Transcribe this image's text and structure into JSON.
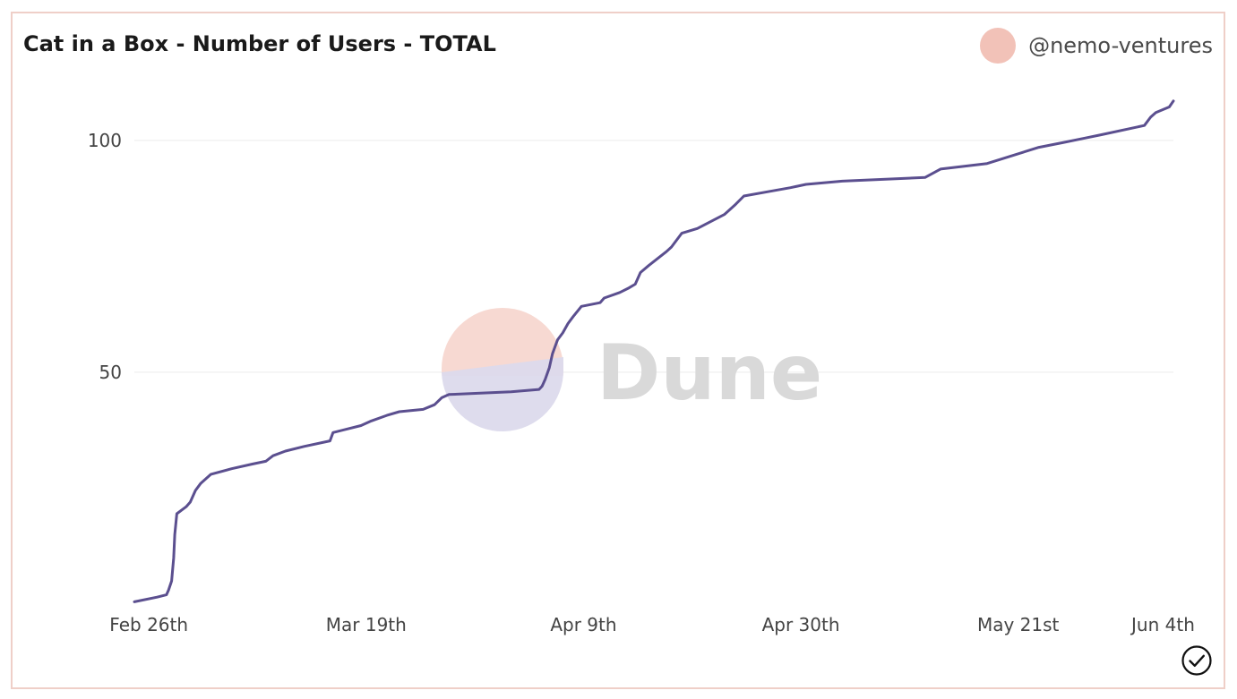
{
  "header": {
    "title": "Cat in a Box - Number of Users - TOTAL",
    "author": "@nemo-ventures"
  },
  "watermark": {
    "text": "Dune"
  },
  "colors": {
    "line": "#5b4f8f",
    "grid": "#ececec",
    "card_border": "#efcfc8",
    "avatar": "#f2c2b8"
  },
  "icons": {
    "status": "check-circle-icon",
    "logo": "dune-logo-icon"
  },
  "chart_data": {
    "type": "line",
    "title": "Cat in a Box - Number of Users - TOTAL",
    "xlabel": "",
    "ylabel": "",
    "x_unit": "days since Feb 26th",
    "xlim": [
      -1.4,
      99
    ],
    "ylim": [
      0,
      110
    ],
    "y_ticks": [
      50,
      100
    ],
    "x_ticks": [
      {
        "label": "Feb 26th",
        "x": 0
      },
      {
        "label": "Mar 19th",
        "x": 21
      },
      {
        "label": "Apr 9th",
        "x": 42
      },
      {
        "label": "Apr 30th",
        "x": 63
      },
      {
        "label": "May 21st",
        "x": 84
      },
      {
        "label": "Jun 4th",
        "x": 98
      }
    ],
    "grid": true,
    "legend": "none",
    "series": [
      {
        "name": "Number of Users - TOTAL",
        "x": [
          -1.4,
          0.8,
          1.7,
          1.9,
          2.2,
          2.4,
          2.5,
          2.7,
          3.3,
          3.6,
          4.0,
          4.5,
          5.0,
          6.0,
          8.0,
          10.0,
          11.3,
          12.0,
          13.2,
          15.0,
          17.5,
          17.8,
          20.5,
          21.5,
          23.0,
          24.2,
          26.5,
          27.6,
          28.3,
          29.0,
          35.0,
          37.7,
          38.0,
          38.3,
          38.7,
          39.0,
          39.5,
          40.0,
          40.5,
          41.0,
          41.8,
          43.6,
          44.0,
          45.5,
          46.4,
          47.0,
          47.5,
          48.3,
          50.0,
          50.5,
          51.5,
          53.0,
          55.6,
          56.0,
          56.6,
          57.5,
          60.0,
          62.0,
          63.5,
          67.0,
          75.0,
          76.5,
          81.0,
          86.0,
          88.3,
          90.5,
          92.0,
          96.2,
          96.8,
          97.3,
          98.6,
          99.0
        ],
        "y": [
          0.5,
          1.5,
          2.0,
          3.0,
          5.0,
          10.0,
          15.0,
          19.5,
          20.5,
          21.0,
          22.0,
          24.5,
          26.0,
          28.0,
          29.2,
          30.2,
          30.8,
          32.0,
          33.0,
          34.0,
          35.2,
          37.0,
          38.5,
          39.5,
          40.7,
          41.5,
          42.0,
          43.0,
          44.5,
          45.2,
          45.8,
          46.3,
          47.0,
          48.5,
          51.0,
          54.0,
          57.0,
          58.5,
          60.5,
          62.0,
          64.2,
          65.0,
          66.0,
          67.2,
          68.2,
          69.0,
          71.5,
          73.0,
          76.0,
          77.0,
          80.0,
          81.0,
          84.0,
          84.8,
          86.0,
          88.0,
          89.0,
          89.8,
          90.5,
          91.2,
          92.0,
          93.8,
          95.0,
          98.5,
          99.5,
          100.5,
          101.2,
          103.2,
          105.0,
          106.0,
          107.2,
          108.5
        ]
      }
    ]
  }
}
